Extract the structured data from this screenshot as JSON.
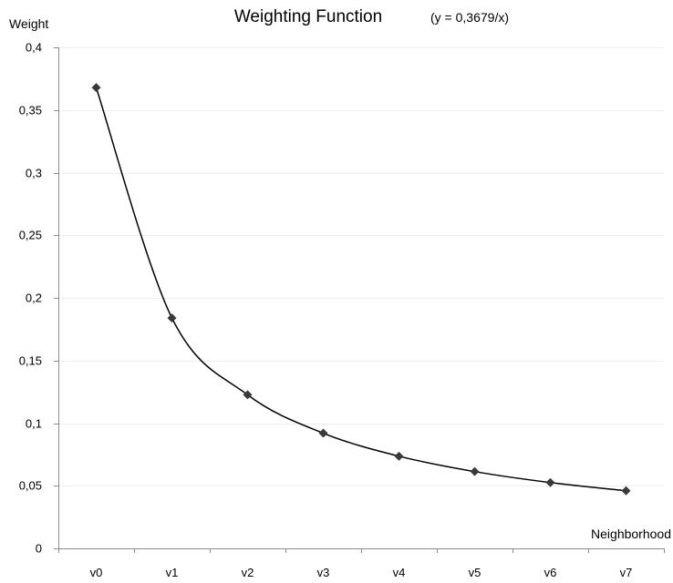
{
  "chart_data": {
    "type": "line",
    "title": "Weighting Function",
    "subtitle": "(y = 0,3679/x)",
    "xlabel": "Neighborhood",
    "ylabel": "Weight",
    "categories": [
      "v0",
      "v1",
      "v2",
      "v3",
      "v4",
      "v5",
      "v6",
      "v7"
    ],
    "series": [
      {
        "values": [
          0.3679,
          0.18395,
          0.12263,
          0.09198,
          0.07358,
          0.06132,
          0.05256,
          0.04599
        ],
        "color": "#000000",
        "marker": "diamond",
        "marker_color": "#3a3a3a",
        "smooth": true
      }
    ],
    "ylim": [
      0,
      0.4
    ],
    "yticks": [
      0,
      0.05,
      0.1,
      0.15,
      0.2,
      0.25,
      0.3,
      0.35,
      0.4
    ],
    "ytick_labels": [
      "0",
      "0,05",
      "0,1",
      "0,15",
      "0,2",
      "0,25",
      "0,3",
      "0,35",
      "0,4"
    ],
    "grid": true,
    "legend": "none"
  }
}
